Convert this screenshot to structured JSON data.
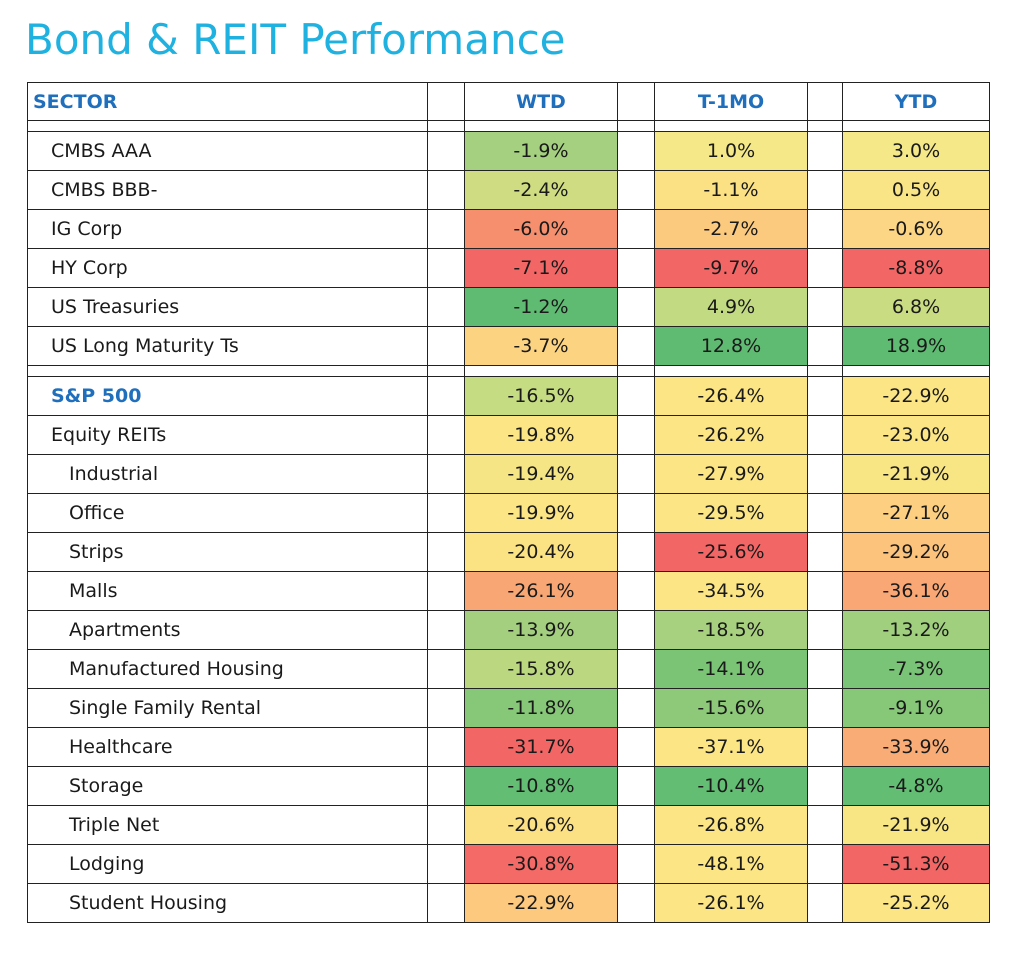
{
  "title": "Bond & REIT Performance",
  "colors": {
    "title": "#1fb1e0",
    "header": "#1f6fbd",
    "scale_low": "#f36465",
    "scale_mid": "#fbe780",
    "scale_high": "#5dbb71"
  },
  "chart_data": {
    "type": "table",
    "columns": [
      "SECTOR",
      "WTD",
      "T-1MO",
      "YTD"
    ],
    "groups": [
      {
        "rows": [
          {
            "label": "CMBS AAA",
            "indent": 0,
            "values": [
              "-1.9%",
              "1.0%",
              "3.0%"
            ],
            "colors": [
              "#a4d080",
              "#f5e888",
              "#f5e888"
            ]
          },
          {
            "label": "CMBS BBB-",
            "indent": 0,
            "values": [
              "-2.4%",
              "-1.1%",
              "0.5%"
            ],
            "colors": [
              "#cfdc82",
              "#fbe184",
              "#f9e586"
            ]
          },
          {
            "label": "IG Corp",
            "indent": 0,
            "values": [
              "-6.0%",
              "-2.7%",
              "-0.6%"
            ],
            "colors": [
              "#f58f6e",
              "#fcca7e",
              "#fcd684"
            ]
          },
          {
            "label": "HY Corp",
            "indent": 0,
            "values": [
              "-7.1%",
              "-9.7%",
              "-8.8%"
            ],
            "colors": [
              "#f36666",
              "#f36666",
              "#f36666"
            ]
          },
          {
            "label": "US Treasuries",
            "indent": 0,
            "values": [
              "-1.2%",
              "4.9%",
              "6.8%"
            ],
            "colors": [
              "#5fbb72",
              "#c2db82",
              "#c9dc82"
            ]
          },
          {
            "label": "US Long Maturity Ts",
            "indent": 0,
            "values": [
              "-3.7%",
              "12.8%",
              "18.9%"
            ],
            "colors": [
              "#fcd381",
              "#5fbb72",
              "#5fbb72"
            ]
          }
        ]
      },
      {
        "rows": [
          {
            "label": "S&P 500",
            "indent": 0,
            "highlight": true,
            "values": [
              "-16.5%",
              "-26.4%",
              "-22.9%"
            ],
            "colors": [
              "#c6dc82",
              "#fbe584",
              "#fbe584"
            ]
          },
          {
            "label": "Equity REITs",
            "indent": 0,
            "values": [
              "-19.8%",
              "-26.2%",
              "-23.0%"
            ],
            "colors": [
              "#fbe584",
              "#fbe584",
              "#fbe584"
            ]
          },
          {
            "label": "Industrial",
            "indent": 1,
            "values": [
              "-19.4%",
              "-27.9%",
              "-21.9%"
            ],
            "colors": [
              "#f6e584",
              "#fbe584",
              "#f8e584"
            ]
          },
          {
            "label": "Office",
            "indent": 1,
            "values": [
              "-19.9%",
              "-29.5%",
              "-27.1%"
            ],
            "colors": [
              "#fbe584",
              "#fbe584",
              "#fcd080"
            ]
          },
          {
            "label": "Strips",
            "indent": 1,
            "values": [
              "-20.4%",
              "-25.6%",
              "-29.2%"
            ],
            "colors": [
              "#fbe384",
              "#f36666",
              "#fcc37c"
            ]
          },
          {
            "label": "Malls",
            "indent": 1,
            "values": [
              "-26.1%",
              "-34.5%",
              "-36.1%"
            ],
            "colors": [
              "#f8a774",
              "#fbe584",
              "#f9a875"
            ]
          },
          {
            "label": "Apartments",
            "indent": 1,
            "values": [
              "-13.9%",
              "-18.5%",
              "-13.2%"
            ],
            "colors": [
              "#a3cf7f",
              "#a8d17f",
              "#a0cf7e"
            ]
          },
          {
            "label": "Manufactured Housing",
            "indent": 1,
            "values": [
              "-15.8%",
              "-14.1%",
              "-7.3%"
            ],
            "colors": [
              "#bbd880",
              "#7bc476",
              "#79c476"
            ]
          },
          {
            "label": "Single Family Rental",
            "indent": 1,
            "values": [
              "-11.8%",
              "-15.6%",
              "-9.1%"
            ],
            "colors": [
              "#87c778",
              "#8dc979",
              "#86c778"
            ]
          },
          {
            "label": "Healthcare",
            "indent": 1,
            "values": [
              "-31.7%",
              "-37.1%",
              "-33.9%"
            ],
            "colors": [
              "#f36666",
              "#fbe584",
              "#f9ac76"
            ]
          },
          {
            "label": "Storage",
            "indent": 1,
            "values": [
              "-10.8%",
              "-10.4%",
              "-4.8%"
            ],
            "colors": [
              "#63bd73",
              "#63bd73",
              "#63bd73"
            ]
          },
          {
            "label": "Triple Net",
            "indent": 1,
            "values": [
              "-20.6%",
              "-26.8%",
              "-21.9%"
            ],
            "colors": [
              "#fbe084",
              "#fbe584",
              "#f8e584"
            ]
          },
          {
            "label": "Lodging",
            "indent": 1,
            "values": [
              "-30.8%",
              "-48.1%",
              "-51.3%"
            ],
            "colors": [
              "#f36a67",
              "#fbe584",
              "#f36666"
            ]
          },
          {
            "label": "Student Housing",
            "indent": 1,
            "values": [
              "-22.9%",
              "-26.1%",
              "-25.2%"
            ],
            "colors": [
              "#fcc97e",
              "#fbe584",
              "#fbe584"
            ]
          }
        ]
      }
    ]
  }
}
